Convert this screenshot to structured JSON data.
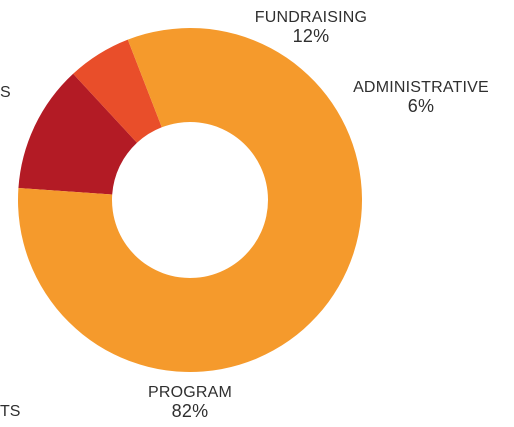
{
  "chart_data": {
    "type": "pie",
    "variant": "donut",
    "title": "",
    "slices": [
      {
        "label": "PROGRAM",
        "value": 82,
        "display": "82%",
        "color": "#f59a2c"
      },
      {
        "label": "FUNDRAISING",
        "value": 12,
        "display": "12%",
        "color": "#b31b25"
      },
      {
        "label": "ADMINISTRATIVE",
        "value": 6,
        "display": "6%",
        "color": "#e94e2a"
      }
    ],
    "legend": "none",
    "edge_fragments": [
      "S",
      "TS"
    ]
  },
  "colors": {
    "background": "#ffffff",
    "label_text": "#2f2f2f"
  }
}
